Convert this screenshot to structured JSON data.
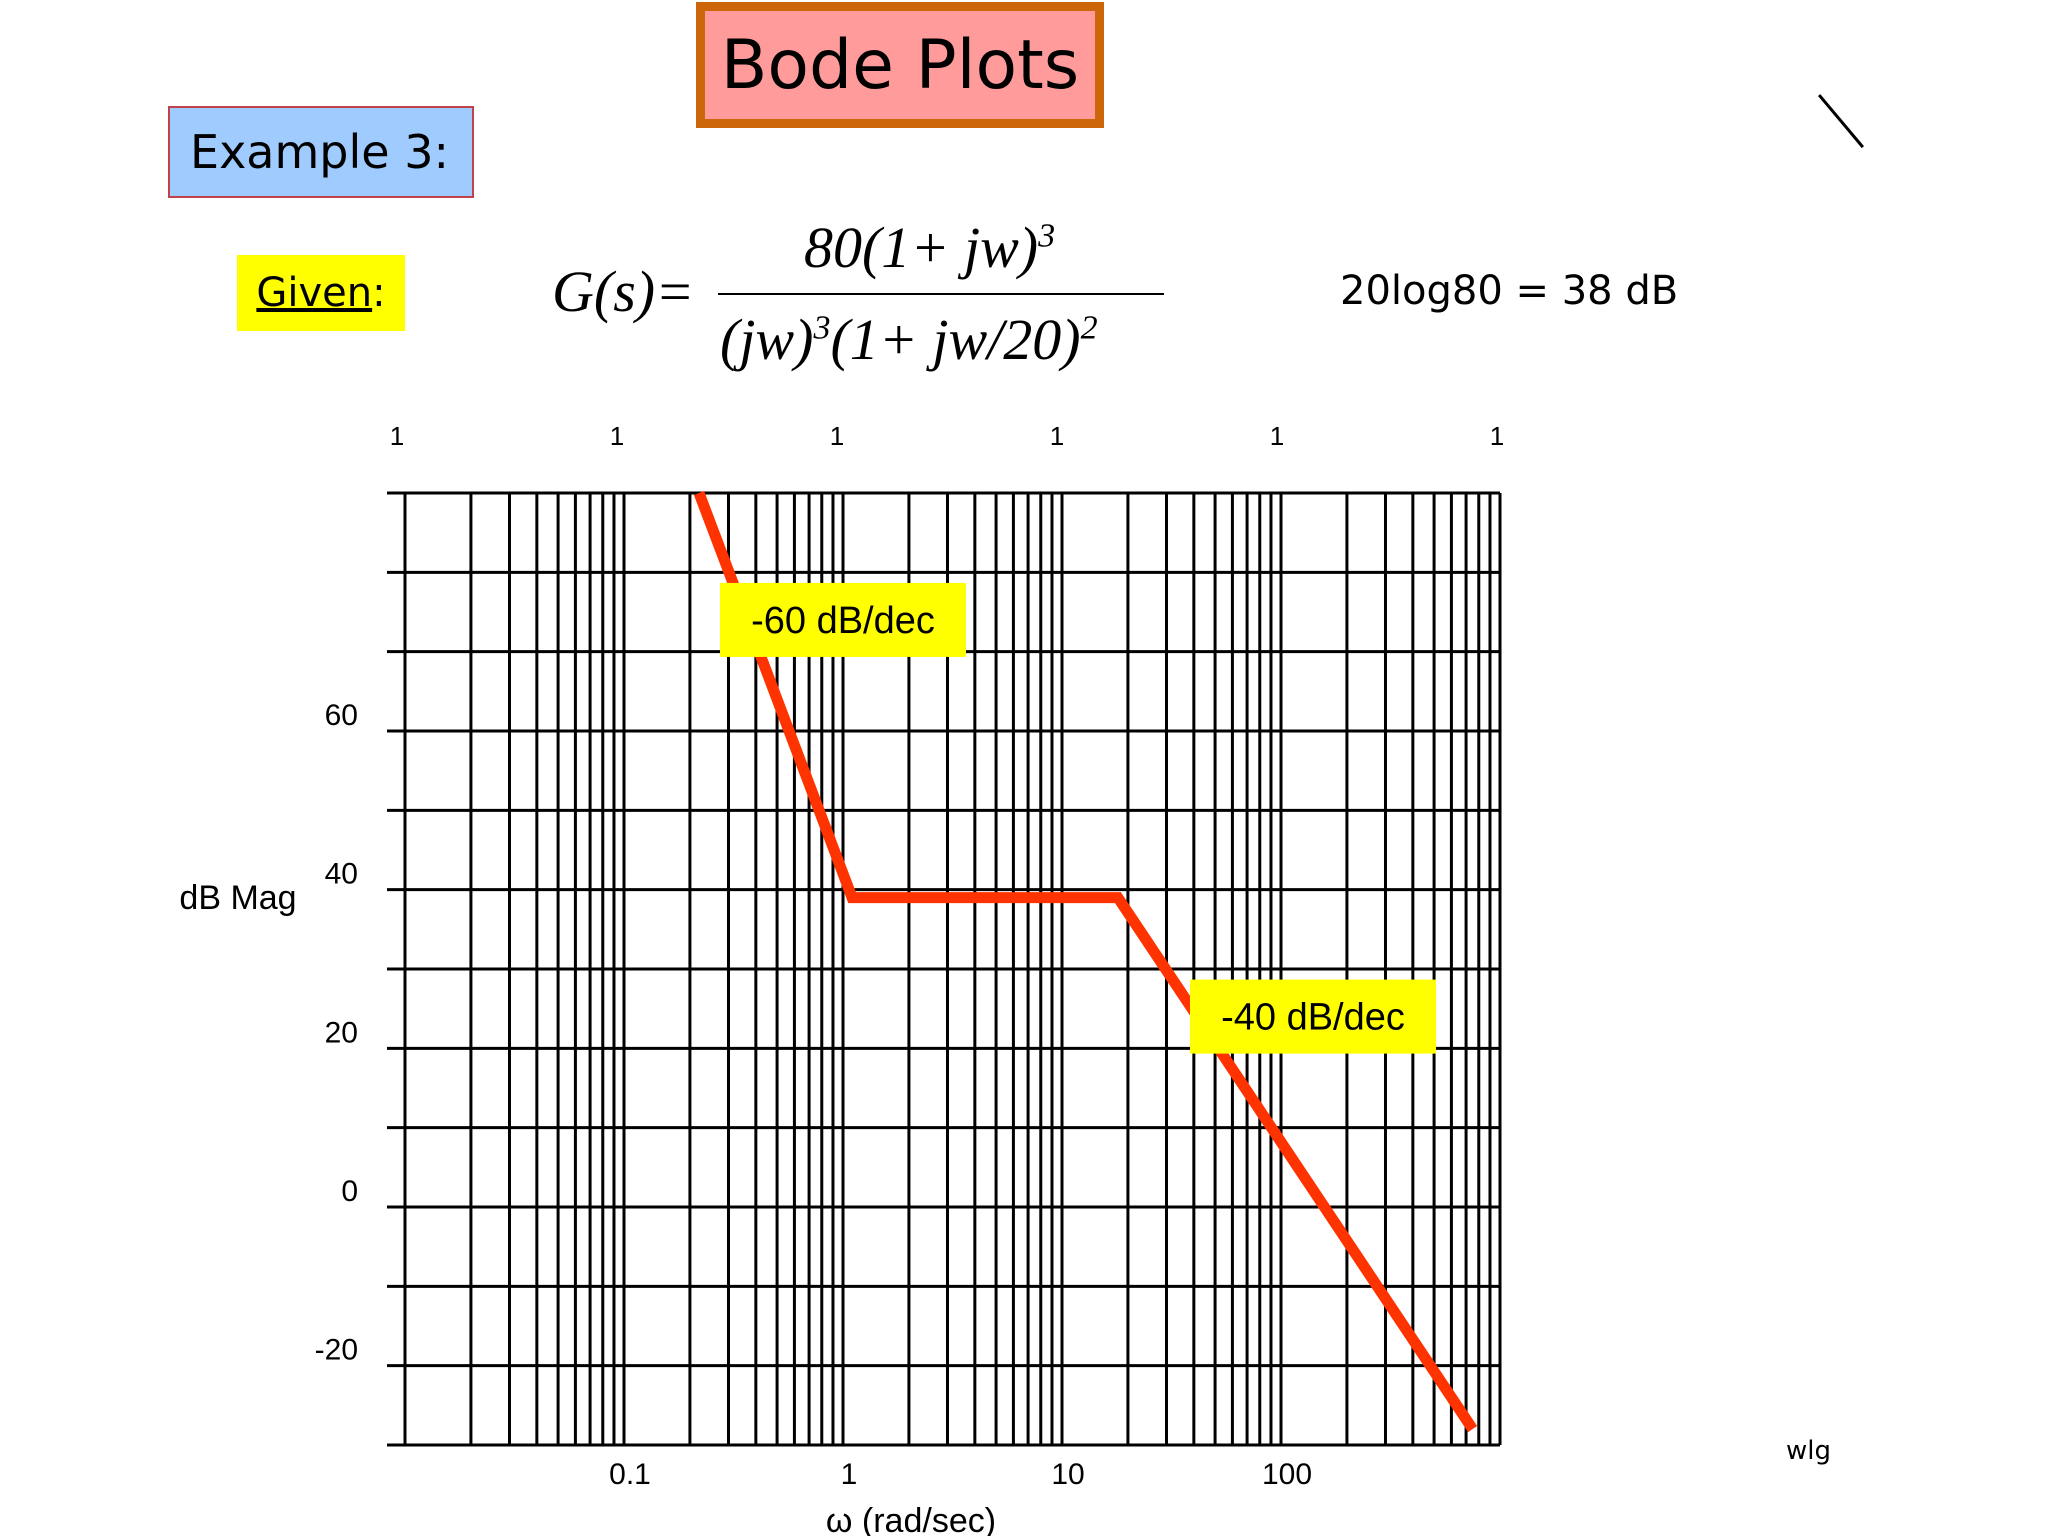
{
  "slide": {
    "title": "Bode Plots",
    "example_label": "Example 3:",
    "given_label": "Given",
    "given_colon": ":",
    "equation": {
      "lhs": "G(s)=",
      "numerator": "80(1+ jw)",
      "numerator_exp": "3",
      "denominator_a": "(jw)",
      "denominator_a_exp": "3",
      "denominator_b": "(1+ jw/20)",
      "denominator_b_exp": "2"
    },
    "aside": "20log80 = 38 dB",
    "signature": "wlg"
  },
  "colors": {
    "title_fill": "#ff9b9b",
    "title_border": "#cc6608",
    "example_fill": "#9fcbff",
    "highlight": "#ffff00",
    "asymptote": "#ff3300",
    "grid": "#000000"
  },
  "chart_data": {
    "type": "line",
    "xscale": "log",
    "xlim": [
      0.01,
      1000
    ],
    "ylim": [
      -30,
      90
    ],
    "ylabel": "dB Mag",
    "xlabel": "ω (rad/sec)",
    "x_ticks": [
      "0.1",
      "1",
      "10",
      "100"
    ],
    "x_tick_values": [
      0.1,
      1,
      10,
      100
    ],
    "y_ticks": [
      "60",
      "40",
      "20",
      "0",
      "-20"
    ],
    "y_tick_values": [
      60,
      40,
      20,
      0,
      -20
    ],
    "top_labels": [
      "1",
      "1",
      "1",
      "1",
      "1",
      "1"
    ],
    "grid": true,
    "series": [
      {
        "x": [
          0.22,
          1.1,
          18,
          750
        ],
        "y": [
          90,
          39,
          39,
          -28
        ],
        "color": "#ff3300"
      }
    ],
    "annotations": [
      {
        "text": "-60 dB/dec",
        "x": 1.0,
        "y": 74
      },
      {
        "text": "-40 dB/dec",
        "x": 140,
        "y": 24
      }
    ]
  }
}
